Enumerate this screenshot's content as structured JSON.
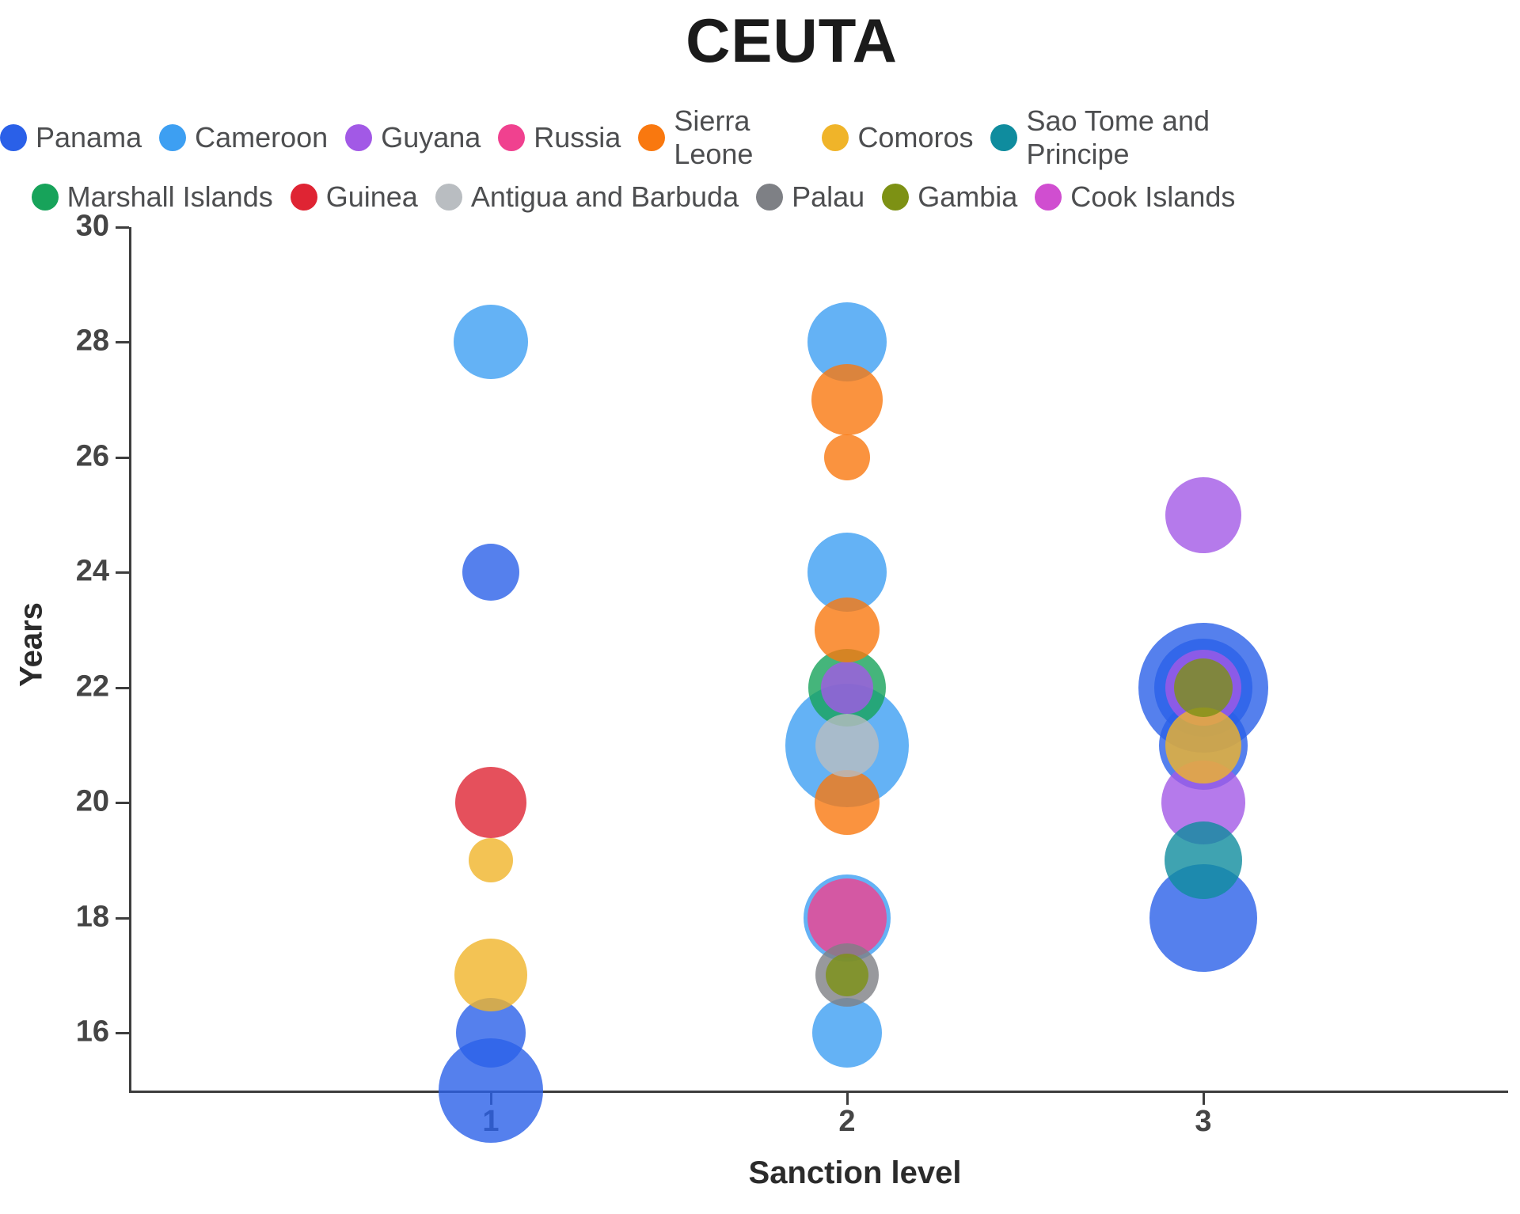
{
  "title": "CEUTA",
  "colors": {
    "Panama": "#2A60E8",
    "Cameroon": "#3D9FF2",
    "Guyana": "#A259E6",
    "Russia": "#F0418F",
    "Sierra Leone": "#F9780F",
    "Comoros": "#F0B429",
    "Sao Tome and Principe": "#0F8C9E",
    "Marshall Islands": "#17A35A",
    "Guinea": "#DF2433",
    "Antigua and Barbuda": "#B9BDC1",
    "Palau": "#7E8085",
    "Gambia": "#7D9114",
    "Cook Islands": "#D04ED0"
  },
  "legend": [
    "Panama",
    "Cameroon",
    "Guyana",
    "Russia",
    "Sierra Leone",
    "Comoros",
    "Sao Tome and Principe",
    "Marshall Islands",
    "Guinea",
    "Antigua and Barbuda",
    "Palau",
    "Gambia",
    "Cook Islands"
  ],
  "chart_data": {
    "type": "scatter",
    "title": "CEUTA",
    "xlabel": "Sanction level",
    "ylabel": "Years",
    "xlim": [
      0,
      3.85
    ],
    "ylim": [
      15,
      30
    ],
    "x_ticks": [
      1,
      2,
      3
    ],
    "y_ticks": [
      16,
      18,
      20,
      22,
      24,
      26,
      28,
      30
    ],
    "grid": false,
    "legend_position": "top",
    "bubble_opacity": 0.8,
    "series": [
      {
        "name": "Panama",
        "points": [
          {
            "x": 1,
            "y": 24,
            "r": 36
          },
          {
            "x": 1,
            "y": 16,
            "r": 44
          },
          {
            "x": 1,
            "y": 15,
            "r": 66
          },
          {
            "x": 3,
            "y": 22,
            "r": 82
          },
          {
            "x": 3,
            "y": 22,
            "r": 62
          },
          {
            "x": 3,
            "y": 21,
            "r": 56
          },
          {
            "x": 3,
            "y": 18,
            "r": 68
          }
        ]
      },
      {
        "name": "Cameroon",
        "points": [
          {
            "x": 1,
            "y": 28,
            "r": 47
          },
          {
            "x": 2,
            "y": 28,
            "r": 50
          },
          {
            "x": 2,
            "y": 24,
            "r": 50
          },
          {
            "x": 2,
            "y": 21,
            "r": 78
          },
          {
            "x": 2,
            "y": 18,
            "r": 55
          },
          {
            "x": 2,
            "y": 16,
            "r": 44
          }
        ]
      },
      {
        "name": "Marshall Islands",
        "points": [
          {
            "x": 2,
            "y": 22,
            "r": 49
          }
        ]
      },
      {
        "name": "Guyana",
        "points": [
          {
            "x": 2,
            "y": 22,
            "r": 33
          },
          {
            "x": 3,
            "y": 25,
            "r": 48
          },
          {
            "x": 3,
            "y": 22,
            "r": 48
          },
          {
            "x": 3,
            "y": 20,
            "r": 53
          }
        ]
      },
      {
        "name": "Sierra Leone",
        "points": [
          {
            "x": 2,
            "y": 27,
            "r": 45
          },
          {
            "x": 2,
            "y": 26,
            "r": 29
          },
          {
            "x": 2,
            "y": 23,
            "r": 41
          },
          {
            "x": 2,
            "y": 20,
            "r": 41
          }
        ]
      },
      {
        "name": "Russia",
        "points": [
          {
            "x": 2,
            "y": 18,
            "r": 50
          }
        ]
      },
      {
        "name": "Comoros",
        "points": [
          {
            "x": 1,
            "y": 19,
            "r": 28
          },
          {
            "x": 1,
            "y": 17,
            "r": 46
          },
          {
            "x": 3,
            "y": 21,
            "r": 48
          }
        ]
      },
      {
        "name": "Sao Tome and Principe",
        "points": [
          {
            "x": 3,
            "y": 19,
            "r": 49
          }
        ]
      },
      {
        "name": "Guinea",
        "points": [
          {
            "x": 1,
            "y": 20,
            "r": 45
          }
        ]
      },
      {
        "name": "Antigua and Barbuda",
        "points": [
          {
            "x": 2,
            "y": 21,
            "r": 40
          }
        ]
      },
      {
        "name": "Palau",
        "points": [
          {
            "x": 2,
            "y": 17,
            "r": 40
          }
        ]
      },
      {
        "name": "Gambia",
        "points": [
          {
            "x": 2,
            "y": 17,
            "r": 27
          },
          {
            "x": 3,
            "y": 22,
            "r": 37
          }
        ]
      },
      {
        "name": "Cook Islands",
        "points": []
      }
    ]
  }
}
